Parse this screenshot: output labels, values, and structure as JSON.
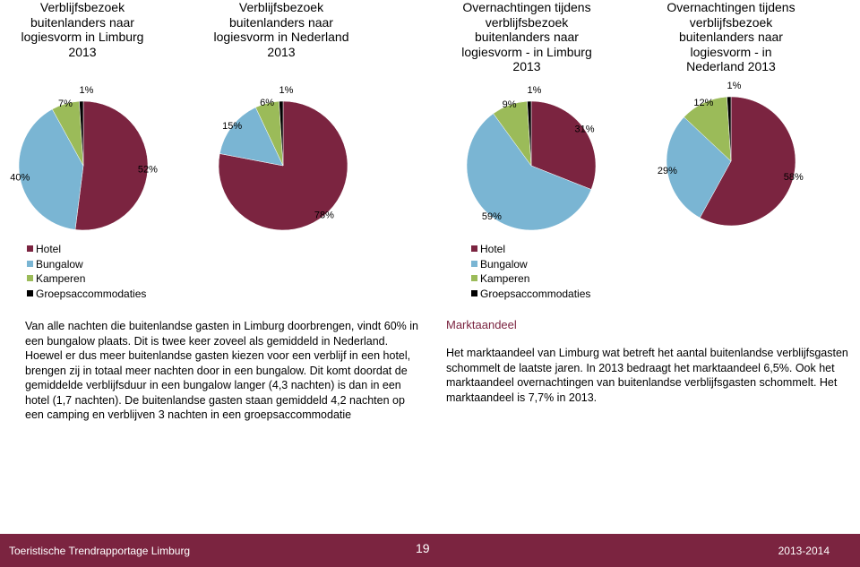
{
  "chart_data": [
    {
      "type": "pie",
      "title": "Verblijfsbezoek buitenlanders naar logiesvorm in Limburg 2013",
      "categories": [
        "Hotel",
        "Bungalow",
        "Kamperen",
        "Groepsaccommodaties"
      ],
      "colors": [
        "#7b2440",
        "#7ab5d3",
        "#9bbb59",
        "#000000"
      ],
      "values": [
        52,
        40,
        7,
        1
      ],
      "value_labels": [
        "52%",
        "40%",
        "7%",
        "1%"
      ]
    },
    {
      "type": "pie",
      "title": "Verblijfsbezoek buitenlanders naar logiesvorm in Nederland 2013",
      "categories": [
        "Hotel",
        "Bungalow",
        "Kamperen",
        "Groepsaccommodaties"
      ],
      "colors": [
        "#7b2440",
        "#7ab5d3",
        "#9bbb59",
        "#000000"
      ],
      "values": [
        78,
        15,
        6,
        1
      ],
      "value_labels": [
        "78%",
        "15%",
        "6%",
        "1%"
      ]
    },
    {
      "type": "pie",
      "title": "Overnachtingen tijdens verblijfsbezoek buitenlanders naar logiesvorm - in Limburg 2013",
      "categories": [
        "Hotel",
        "Bungalow",
        "Kamperen",
        "Groepsaccommodaties"
      ],
      "colors": [
        "#7b2440",
        "#7ab5d3",
        "#9bbb59",
        "#000000"
      ],
      "values": [
        31,
        59,
        9,
        1
      ],
      "value_labels": [
        "31%",
        "59%",
        "9%",
        "1%"
      ]
    },
    {
      "type": "pie",
      "title": "Overnachtingen tijdens verblijfsbezoek buitenlanders naar logiesvorm - in Nederland 2013",
      "categories": [
        "Hotel",
        "Bungalow",
        "Kamperen",
        "Groepsaccommodaties"
      ],
      "colors": [
        "#7b2440",
        "#7ab5d3",
        "#9bbb59",
        "#000000"
      ],
      "values": [
        58,
        29,
        12,
        1
      ],
      "value_labels": [
        "58%",
        "29%",
        "12%",
        "1%"
      ]
    }
  ],
  "text": {
    "left": "Van alle nachten die buitenlandse gasten in Limburg doorbrengen, vindt 60% in een bungalow plaats. Dit is twee keer zoveel als gemiddeld in Nederland. Hoewel er dus meer buitenlandse gasten kiezen voor een verblijf in een hotel, brengen zij in totaal meer nachten door in een bungalow. Dit komt doordat de gemiddelde verblijfsduur in een bungalow langer (4,3 nachten) is dan in een hotel (1,7 nachten). De buitenlandse gasten staan gemiddeld 4,2 nachten op een camping en verblijven 3 nachten in een groepsaccommodatie",
    "right_heading": "Marktaandeel",
    "right": "Het marktaandeel van Limburg wat betreft het aantal buitenlandse verblijfsgasten schommelt de laatste jaren. In 2013 bedraagt het marktaandeel 6,5%. Ook het marktaandeel overnachtingen van buitenlandse verblijfsgasten schommelt. Het marktaandeel is 7,7% in 2013."
  },
  "footer": {
    "left": "Toeristische Trendrapportage Limburg",
    "page": "19",
    "right": "2013-2014"
  }
}
